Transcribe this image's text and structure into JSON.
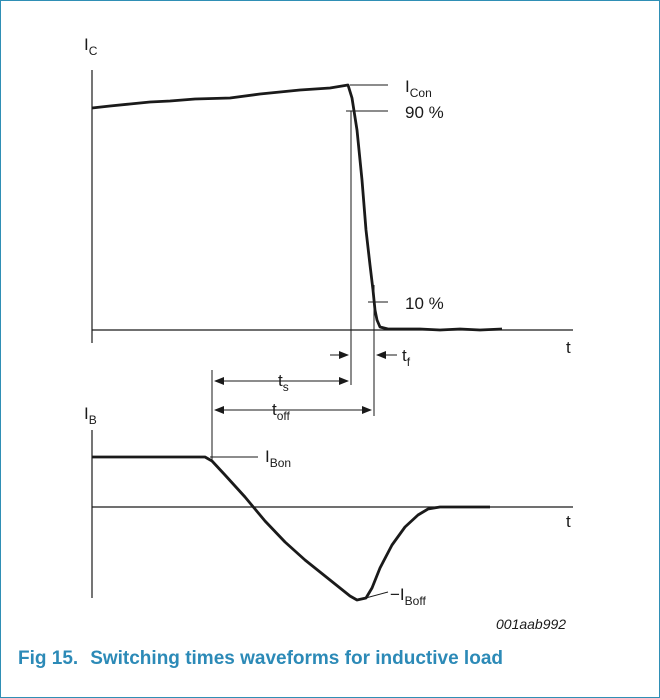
{
  "diagram": {
    "ic_axis": {
      "main": "I",
      "sub": "C"
    },
    "ib_axis": {
      "main": "I",
      "sub": "B"
    },
    "time_label_top": "t",
    "time_label_bottom": "t",
    "icon_label": {
      "main": "I",
      "sub": "Con"
    },
    "pct_90": "90 %",
    "pct_10": "10 %",
    "tf_label": {
      "main": "t",
      "sub": "f"
    },
    "ts_label": {
      "main": "t",
      "sub": "s"
    },
    "toff_label": {
      "main": "t",
      "sub": "off"
    },
    "ibon_label": {
      "main": "I",
      "sub": "Bon"
    },
    "iboff_label": {
      "main": "−I",
      "sub": "Boff"
    },
    "reference_code": "001aab992"
  },
  "caption": {
    "number": "Fig 15.",
    "title": "Switching times waveforms for inductive load"
  },
  "colors": {
    "frame": "#2f8fb5",
    "caption": "#2c8ab7",
    "ink": "#1a1a1a"
  }
}
